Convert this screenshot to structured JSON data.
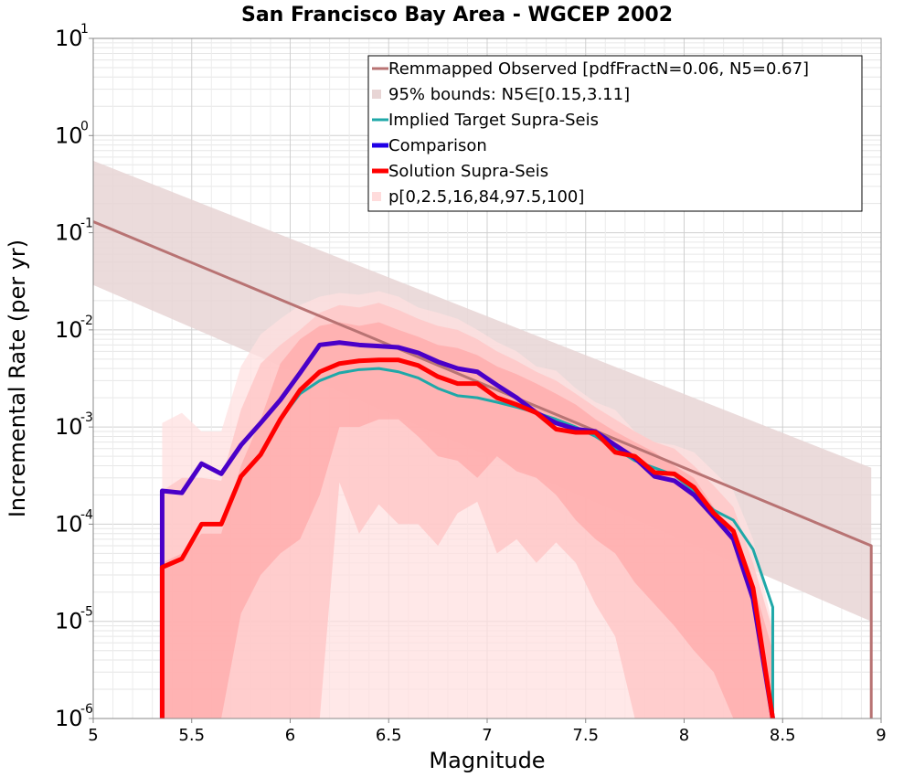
{
  "chart_data": {
    "type": "line",
    "title": "San Francisco Bay Area - WGCEP 2002",
    "xlabel": "Magnitude",
    "ylabel": "Incremental Rate (per yr)",
    "xlim": [
      5,
      9
    ],
    "ylim": [
      1e-06,
      10
    ],
    "yscale": "log",
    "grid": true,
    "legend_placement": "top-right",
    "x_ticks": [
      "5",
      "5.5",
      "6",
      "6.5",
      "7",
      "7.5",
      "8",
      "8.5",
      "9"
    ],
    "y_ticks": [
      {
        "base": "10",
        "exp": "-6"
      },
      {
        "base": "10",
        "exp": "-5"
      },
      {
        "base": "10",
        "exp": "-4"
      },
      {
        "base": "10",
        "exp": "-3"
      },
      {
        "base": "10",
        "exp": "-2"
      },
      {
        "base": "10",
        "exp": "-1"
      },
      {
        "base": "10",
        "exp": "0"
      },
      {
        "base": "10",
        "exp": "1"
      }
    ],
    "legend": [
      {
        "label": "Remmapped Observed [pdfFractN=0.06, N5=0.67]",
        "style": "line",
        "color": "#b87373"
      },
      {
        "label": "95% bounds: N5∈[0.15,3.11]",
        "style": "band",
        "color": "#e8d5d5"
      },
      {
        "label": "Implied Target Supra-Seis",
        "style": "line",
        "color": "#1fa8a8"
      },
      {
        "label": "Comparison",
        "style": "line",
        "color": "#1f00e6"
      },
      {
        "label": "Solution Supra-Seis",
        "style": "line",
        "color": "#ff0000"
      },
      {
        "label": "p[0,2.5,16,84,97.5,100]",
        "style": "band",
        "color": "#ffdcdc"
      }
    ],
    "observed_band": {
      "color": "#e8d5d5",
      "x": [
        5,
        8.95
      ],
      "upper": [
        0.55,
        0.00038
      ],
      "lower": [
        0.029,
        1e-05
      ]
    },
    "percentile_bands": {
      "x": [
        5.35,
        5.45,
        5.55,
        5.65,
        5.75,
        5.85,
        5.95,
        6.05,
        6.15,
        6.25,
        6.35,
        6.45,
        6.55,
        6.65,
        6.75,
        6.85,
        6.95,
        7.05,
        7.15,
        7.25,
        7.35,
        7.45,
        7.55,
        7.65,
        7.75,
        7.85,
        7.95,
        8.05,
        8.15,
        8.25,
        8.35,
        8.45
      ],
      "p0_100": {
        "color": "#ffe0e0",
        "upper": [
          0.0011,
          0.0014,
          0.0009,
          0.0009,
          0.0042,
          0.009,
          0.013,
          0.018,
          0.022,
          0.024,
          0.023,
          0.025,
          0.022,
          0.017,
          0.015,
          0.013,
          0.01,
          0.0075,
          0.006,
          0.0042,
          0.0038,
          0.0025,
          0.0018,
          0.0015,
          0.0009,
          0.0007,
          0.00065,
          0.00055,
          0.00035,
          0.00022,
          7e-05,
          9e-06
        ],
        "lower": [
          1e-06,
          1e-06,
          1e-06,
          1e-06,
          1e-06,
          1e-06,
          1e-06,
          1e-06,
          1e-06,
          1e-06,
          1e-06,
          1e-06,
          1e-06,
          1e-06,
          1e-06,
          1e-06,
          1e-06,
          1e-06,
          1e-06,
          1e-06,
          1e-06,
          1e-06,
          1e-06,
          1e-06,
          1e-06,
          1e-06,
          1e-06,
          1e-06,
          1e-06,
          1e-06,
          1e-06,
          1e-06
        ]
      },
      "p2_5_97_5": {
        "color": "#ffc4c4",
        "upper": [
          0.00022,
          0.0003,
          0.0003,
          0.00028,
          0.0015,
          0.0045,
          0.007,
          0.01,
          0.015,
          0.018,
          0.017,
          0.019,
          0.016,
          0.013,
          0.011,
          0.01,
          0.008,
          0.006,
          0.0048,
          0.0037,
          0.003,
          0.0022,
          0.0016,
          0.0012,
          0.0009,
          0.0007,
          0.0006,
          0.0004,
          0.00025,
          0.00015,
          4e-05,
          8e-06
        ],
        "lower": [
          1e-06,
          1e-06,
          1e-06,
          1e-06,
          1e-06,
          1e-06,
          1e-06,
          1e-06,
          1e-06,
          0.00027,
          8e-05,
          0.00016,
          0.0001,
          0.0001,
          6e-05,
          0.00013,
          0.00017,
          5e-05,
          7e-05,
          4e-05,
          6.5e-05,
          4e-05,
          1.5e-05,
          7e-06,
          1e-06,
          1e-06,
          1e-06,
          1e-06,
          1e-06,
          1e-06,
          1e-06,
          1e-06
        ]
      },
      "p16_84": {
        "color": "#ffaaaa",
        "upper": [
          4e-05,
          5e-05,
          8e-05,
          8e-05,
          0.0004,
          0.0012,
          0.0045,
          0.008,
          0.011,
          0.012,
          0.011,
          0.012,
          0.01,
          0.0085,
          0.007,
          0.0065,
          0.0055,
          0.0042,
          0.0035,
          0.0028,
          0.0022,
          0.0017,
          0.0012,
          0.0009,
          0.0007,
          0.00055,
          0.0004,
          0.0003,
          0.00015,
          8e-05,
          2.5e-05,
          5e-06
        ],
        "lower": [
          1e-06,
          1e-06,
          1e-06,
          1e-06,
          1.2e-05,
          3e-05,
          5e-05,
          7e-05,
          0.0002,
          0.001,
          0.001,
          0.0012,
          0.0012,
          0.0008,
          0.0005,
          0.00045,
          0.0003,
          0.0005,
          0.00035,
          0.0003,
          0.0002,
          0.00011,
          7e-05,
          5e-05,
          2.5e-05,
          1.5e-05,
          9e-06,
          5e-06,
          3e-06,
          1e-06,
          1e-06,
          1e-06
        ]
      }
    },
    "series": [
      {
        "name": "Remmapped Observed [pdfFractN=0.06, N5=0.67]",
        "color": "#b87373",
        "width": 3,
        "x": [
          5,
          8.95,
          8.95
        ],
        "values": [
          0.13,
          6e-05,
          1e-06
        ]
      },
      {
        "name": "Implied Target Supra-Seis",
        "color": "#1fa8a8",
        "width": 3,
        "x": [
          5.35,
          5.35,
          5.45,
          5.55,
          5.65,
          5.75,
          5.85,
          5.95,
          6.05,
          6.15,
          6.25,
          6.35,
          6.45,
          6.55,
          6.65,
          6.75,
          6.85,
          6.95,
          7.05,
          7.15,
          7.25,
          7.35,
          7.45,
          7.55,
          7.65,
          7.75,
          7.85,
          7.95,
          8.05,
          8.15,
          8.25,
          8.35,
          8.45,
          8.45
        ],
        "values": [
          1e-06,
          3.6e-05,
          4.4e-05,
          0.0001,
          0.0001,
          0.00031,
          0.00052,
          0.0012,
          0.0022,
          0.003,
          0.0036,
          0.0039,
          0.004,
          0.0037,
          0.0032,
          0.0025,
          0.0021,
          0.002,
          0.0018,
          0.0016,
          0.0014,
          0.0012,
          0.001,
          0.0008,
          0.0006,
          0.00045,
          0.00038,
          0.00032,
          0.00022,
          0.00014,
          0.00011,
          5.5e-05,
          1.4e-05,
          1e-06
        ]
      },
      {
        "name": "Comparison",
        "color": "#4a00c8",
        "width": 5,
        "x": [
          5.35,
          5.35,
          5.45,
          5.55,
          5.65,
          5.75,
          5.85,
          5.95,
          6.05,
          6.15,
          6.25,
          6.35,
          6.45,
          6.55,
          6.65,
          6.75,
          6.85,
          6.95,
          7.05,
          7.15,
          7.25,
          7.35,
          7.45,
          7.55,
          7.65,
          7.75,
          7.85,
          7.95,
          8.05,
          8.15,
          8.25,
          8.35,
          8.45
        ],
        "values": [
          1e-06,
          0.00022,
          0.00021,
          0.00042,
          0.00033,
          0.00065,
          0.0011,
          0.0019,
          0.0036,
          0.007,
          0.0074,
          0.007,
          0.0068,
          0.0066,
          0.0058,
          0.0047,
          0.004,
          0.0037,
          0.0027,
          0.002,
          0.0014,
          0.0011,
          0.00095,
          0.0009,
          0.00065,
          0.00048,
          0.00031,
          0.00028,
          0.0002,
          0.00012,
          7e-05,
          1.7e-05,
          1e-06
        ]
      },
      {
        "name": "Solution Supra-Seis",
        "color": "#ff0000",
        "width": 5,
        "x": [
          5.35,
          5.35,
          5.45,
          5.55,
          5.65,
          5.75,
          5.85,
          5.95,
          6.05,
          6.15,
          6.25,
          6.35,
          6.45,
          6.55,
          6.65,
          6.75,
          6.85,
          6.95,
          7.05,
          7.15,
          7.25,
          7.35,
          7.45,
          7.55,
          7.65,
          7.75,
          7.85,
          7.95,
          8.05,
          8.15,
          8.25,
          8.35,
          8.45
        ],
        "values": [
          1e-06,
          3.6e-05,
          4.4e-05,
          0.0001,
          0.0001,
          0.00031,
          0.00052,
          0.0012,
          0.0024,
          0.0037,
          0.0045,
          0.0048,
          0.0049,
          0.0049,
          0.0043,
          0.0033,
          0.0028,
          0.0028,
          0.002,
          0.0017,
          0.0014,
          0.00095,
          0.00088,
          0.00088,
          0.00055,
          0.0005,
          0.00034,
          0.00033,
          0.00024,
          0.00013,
          8.5e-05,
          2.2e-05,
          1e-06
        ]
      }
    ]
  }
}
